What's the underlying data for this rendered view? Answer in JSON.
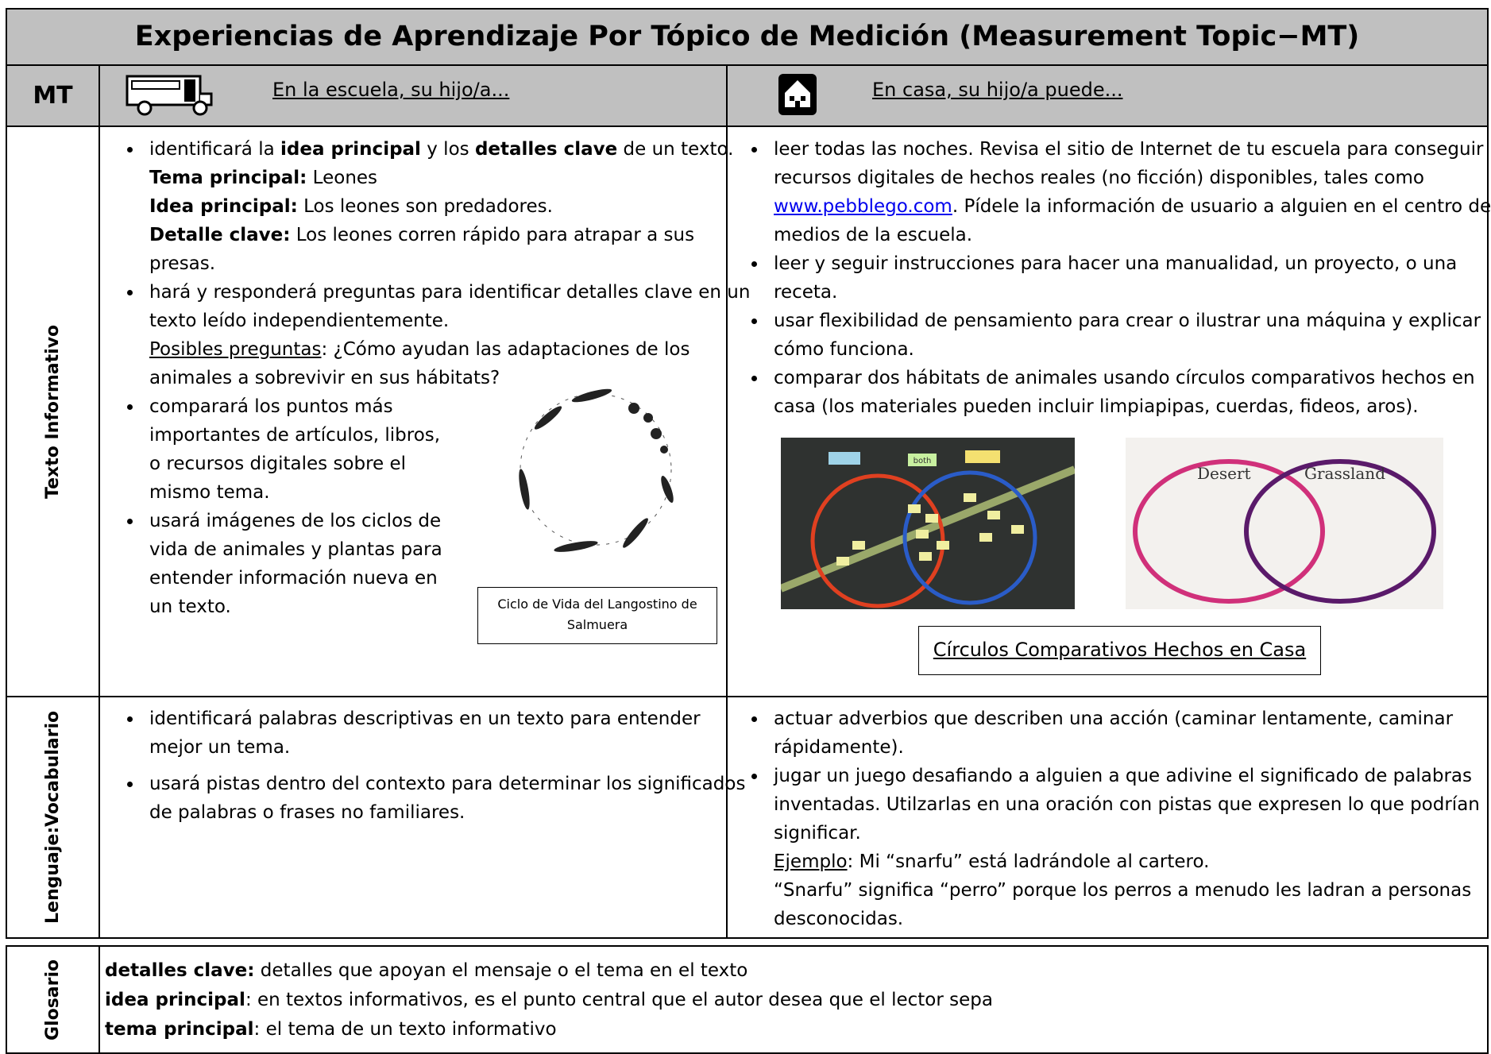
{
  "title": "Experiencias de Aprendizaje Por Tópico de Medición (Measurement Topic−MT)",
  "header": {
    "mt": "MT",
    "school": "En la escuela, su hijo/a...",
    "home": "En casa, su hijo/a puede..."
  },
  "rows": [
    {
      "label": [
        "Texto Informativo"
      ],
      "school": [
        [
          [
            "identificará la ",
            {
              "bold": "idea principal"
            },
            " y los ",
            {
              "bold": "detalles clave"
            },
            " de un texto."
          ],
          [
            {
              "bold": "Tema principal:"
            },
            " Leones"
          ],
          [
            {
              "bold": "Idea principal:"
            },
            " Los leones son predadores."
          ],
          [
            {
              "bold": "Detalle clave:"
            },
            " Los leones corren rápido para atrapar a sus presas."
          ]
        ],
        [
          [
            "hará y responderá preguntas para identificar detalles clave en un texto leído independientemente."
          ],
          [
            {
              "underline": "Posibles preguntas"
            },
            ": ¿Cómo ayudan las adaptaciones de los animales a sobrevivir en sus hábitats?"
          ]
        ],
        [
          [
            "comparará los puntos más importantes de artículos, libros, o recursos digitales sobre el mismo tema."
          ]
        ],
        [
          [
            "usará imágenes de los ciclos de vida de animales y plantas para entender información nueva en un texto."
          ]
        ]
      ],
      "school_caption": "Ciclo de Vida del Langostino de Salmuera",
      "home": [
        [
          [
            "leer todas las noches.  Revisa el sitio de Internet de tu escuela para conseguir recursos digitales de hechos reales (no ficción) disponibles, tales como ",
            {
              "link": "www.pebblego.com"
            },
            ".  Pídele la información de usuario a alguien en el centro de medios de la escuela."
          ]
        ],
        [
          [
            "leer y seguir instrucciones para hacer una manualidad, un proyecto, o una receta."
          ]
        ],
        [
          [
            "usar flexibilidad de pensamiento para crear o ilustrar una máquina y explicar cómo funciona."
          ]
        ],
        [
          [
            "comparar dos hábitats de animales usando círculos comparativos hechos en casa (los materiales pueden incluir limpiapipas, cuerdas, fideos, aros)."
          ]
        ]
      ],
      "home_caption": "Círculos Comparativos Hechos en Casa",
      "photo_labels": [
        "both",
        "Desert",
        "Grassland"
      ]
    },
    {
      "label": [
        "Lenguaje:",
        "Vocabulario"
      ],
      "school": [
        [
          [
            "identificará palabras descriptivas en un texto para entender mejor un tema."
          ]
        ],
        [
          [
            "usará pistas dentro del contexto para determinar los significados de palabras o frases no familiares."
          ]
        ]
      ],
      "home": [
        [
          [
            "actuar adverbios que describen una acción (caminar lentamente, caminar rápidamente)."
          ]
        ],
        [
          [
            "jugar un juego desafiando a alguien a que adivine el significado de palabras inventadas.  Utilzarlas en una oración con pistas que expresen lo que podrían significar."
          ],
          [
            {
              "underline": "Ejemplo"
            },
            ": Mi “snarfu” está ladrándole al cartero."
          ],
          [
            "“Snarfu” significa “perro” porque los perros a menudo les ladran a personas desconocidas."
          ]
        ]
      ]
    }
  ],
  "glossary": {
    "label": "Glosario",
    "entries": [
      {
        "term": "detalles clave:",
        "definition": " detalles que apoyan el mensaje o el tema en el texto"
      },
      {
        "term": "idea principal",
        "definition": ": en textos informativos, es el punto central que el autor desea que el lector sepa"
      },
      {
        "term": "tema principal",
        "definition": ": el tema de un texto informativo"
      }
    ]
  }
}
